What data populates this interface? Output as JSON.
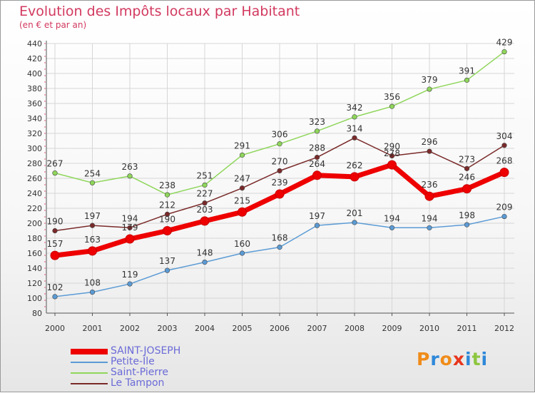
{
  "header": {
    "title": "Evolution des Impôts locaux par Habitant",
    "subtitle": "(en € et par an)"
  },
  "brand": {
    "text": "Proxiti",
    "colors": [
      "#f08c1a",
      "#2e88d8",
      "#f08c1a",
      "#e8361e",
      "#2e88d8",
      "#8cc63f",
      "#2e88d8"
    ]
  },
  "chart_data": {
    "type": "line",
    "title": "Evolution des Impôts locaux par Habitant",
    "subtitle": "(en € et par an)",
    "xlabel": "",
    "ylabel": "",
    "x": [
      "2000",
      "2001",
      "2002",
      "2003",
      "2004",
      "2005",
      "2006",
      "2007",
      "2008",
      "2009",
      "2010",
      "2011",
      "2012"
    ],
    "ylim": [
      80,
      440
    ],
    "yticks": [
      80,
      100,
      120,
      140,
      160,
      180,
      200,
      220,
      240,
      260,
      280,
      300,
      320,
      340,
      360,
      380,
      400,
      420,
      440
    ],
    "grid": true,
    "legend_position": "bottom-left",
    "series": [
      {
        "name": "Petite-Île",
        "color": "#5b9bd5",
        "values": [
          102,
          108,
          119,
          137,
          148,
          160,
          168,
          197,
          201,
          194,
          194,
          198,
          209
        ]
      },
      {
        "name": "Saint-Pierre",
        "color": "#8fd65b",
        "values": [
          267,
          254,
          263,
          238,
          251,
          291,
          306,
          323,
          342,
          356,
          379,
          391,
          429
        ]
      },
      {
        "name": "Le Tampon",
        "color": "#7a2a2a",
        "values": [
          190,
          197,
          194,
          212,
          227,
          247,
          270,
          288,
          314,
          290,
          296,
          273,
          304
        ]
      },
      {
        "name": "SAINT-JOSEPH",
        "color": "#ee0000",
        "values": [
          157,
          163,
          179,
          190,
          203,
          215,
          239,
          264,
          262,
          278,
          236,
          246,
          268
        ]
      }
    ],
    "legend_order": [
      "SAINT-JOSEPH",
      "Petite-Île",
      "Saint-Pierre",
      "Le Tampon"
    ]
  }
}
